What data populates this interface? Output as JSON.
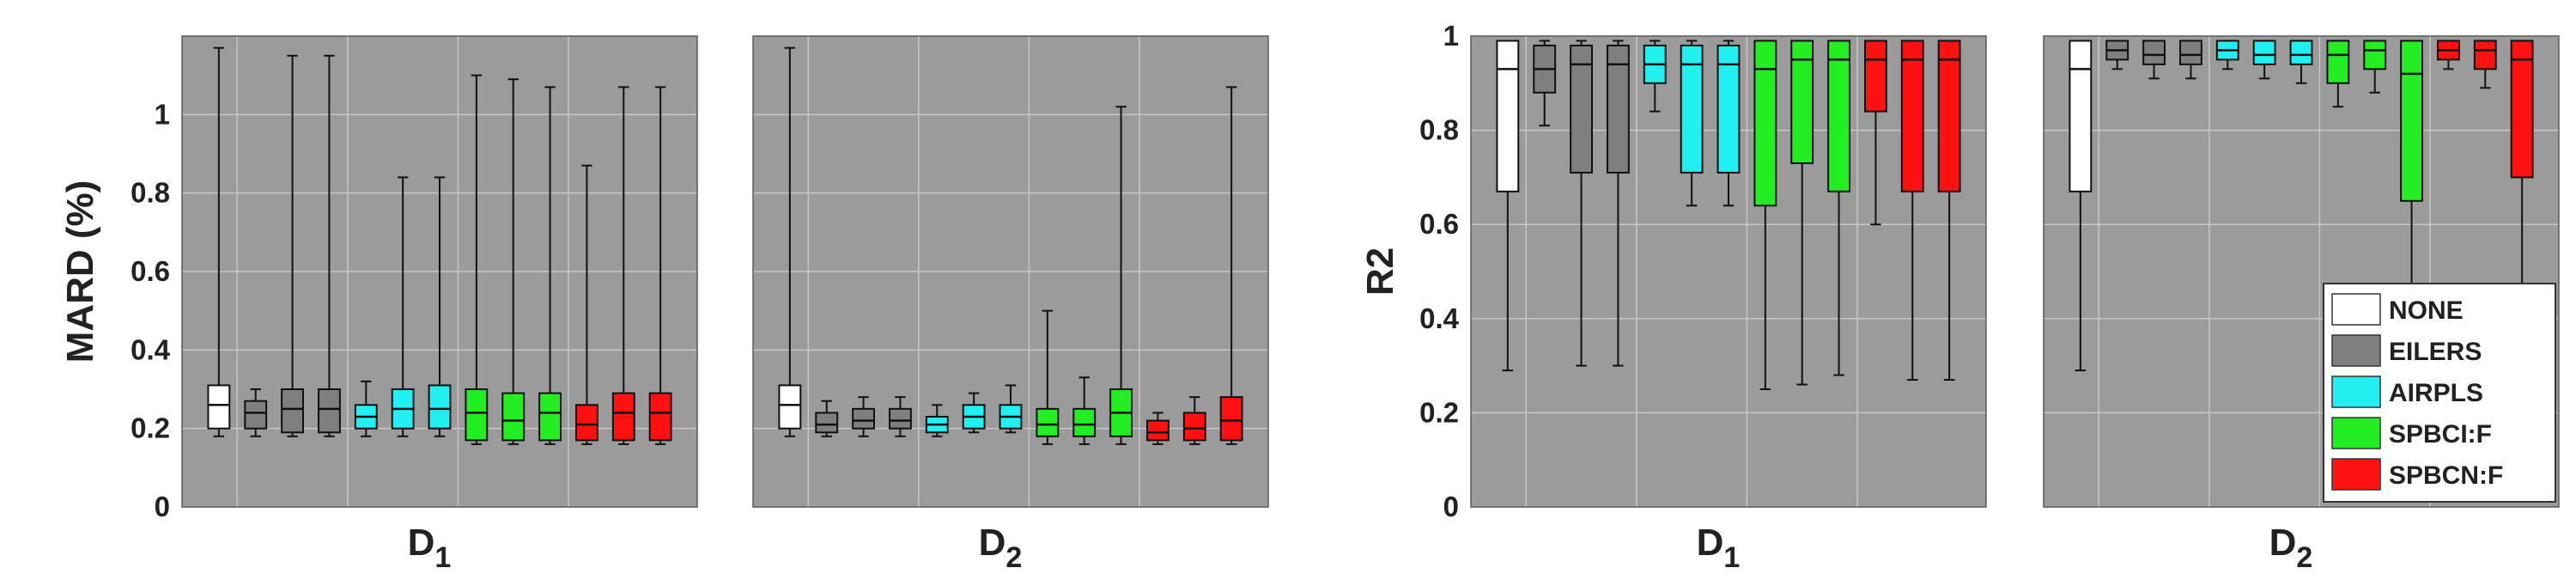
{
  "colors": {
    "plot_bg": "#9b9b9b",
    "grid": "#c7c7c7",
    "whisker": "#111111",
    "NONE": "#ffffff",
    "EILERS": "#7f7f7f",
    "AIRPLS": "#22f0f0",
    "SPBCI:F": "#22ee22",
    "SPBCN:F": "#ff1111"
  },
  "chart_data": [
    {
      "type": "box",
      "ylabel": "MARD (%)",
      "xlabel_main": "D",
      "xlabel_sub": "1",
      "ylim": [
        0,
        1.2
      ],
      "yticks": [
        0,
        0.2,
        0.4,
        0.6,
        0.8,
        1
      ],
      "grid": true,
      "boxes": [
        {
          "method": "NONE",
          "min": 0.18,
          "q1": 0.2,
          "median": 0.26,
          "q3": 0.31,
          "max": 1.17
        },
        {
          "method": "EILERS",
          "min": 0.18,
          "q1": 0.2,
          "median": 0.24,
          "q3": 0.27,
          "max": 0.3
        },
        {
          "method": "EILERS",
          "min": 0.18,
          "q1": 0.19,
          "median": 0.25,
          "q3": 0.3,
          "max": 1.15
        },
        {
          "method": "EILERS",
          "min": 0.18,
          "q1": 0.19,
          "median": 0.25,
          "q3": 0.3,
          "max": 1.15
        },
        {
          "method": "AIRPLS",
          "min": 0.18,
          "q1": 0.2,
          "median": 0.23,
          "q3": 0.26,
          "max": 0.32
        },
        {
          "method": "AIRPLS",
          "min": 0.18,
          "q1": 0.2,
          "median": 0.25,
          "q3": 0.3,
          "max": 0.84
        },
        {
          "method": "AIRPLS",
          "min": 0.18,
          "q1": 0.2,
          "median": 0.25,
          "q3": 0.31,
          "max": 0.84
        },
        {
          "method": "SPBCI:F",
          "min": 0.16,
          "q1": 0.17,
          "median": 0.24,
          "q3": 0.3,
          "max": 1.1
        },
        {
          "method": "SPBCI:F",
          "min": 0.16,
          "q1": 0.17,
          "median": 0.22,
          "q3": 0.29,
          "max": 1.09
        },
        {
          "method": "SPBCI:F",
          "min": 0.16,
          "q1": 0.17,
          "median": 0.24,
          "q3": 0.29,
          "max": 1.07
        },
        {
          "method": "SPBCN:F",
          "min": 0.16,
          "q1": 0.17,
          "median": 0.21,
          "q3": 0.26,
          "max": 0.87
        },
        {
          "method": "SPBCN:F",
          "min": 0.16,
          "q1": 0.17,
          "median": 0.24,
          "q3": 0.29,
          "max": 1.07
        },
        {
          "method": "SPBCN:F",
          "min": 0.16,
          "q1": 0.17,
          "median": 0.24,
          "q3": 0.29,
          "max": 1.07
        }
      ]
    },
    {
      "type": "box",
      "ylabel": "",
      "xlabel_main": "D",
      "xlabel_sub": "2",
      "ylim": [
        0,
        1.2
      ],
      "yticks": [
        0,
        0.2,
        0.4,
        0.6,
        0.8,
        1
      ],
      "grid": true,
      "boxes": [
        {
          "method": "NONE",
          "min": 0.18,
          "q1": 0.2,
          "median": 0.26,
          "q3": 0.31,
          "max": 1.17
        },
        {
          "method": "EILERS",
          "min": 0.18,
          "q1": 0.19,
          "median": 0.21,
          "q3": 0.24,
          "max": 0.27
        },
        {
          "method": "EILERS",
          "min": 0.18,
          "q1": 0.2,
          "median": 0.22,
          "q3": 0.25,
          "max": 0.28
        },
        {
          "method": "EILERS",
          "min": 0.18,
          "q1": 0.2,
          "median": 0.22,
          "q3": 0.25,
          "max": 0.28
        },
        {
          "method": "AIRPLS",
          "min": 0.18,
          "q1": 0.19,
          "median": 0.21,
          "q3": 0.23,
          "max": 0.26
        },
        {
          "method": "AIRPLS",
          "min": 0.19,
          "q1": 0.2,
          "median": 0.23,
          "q3": 0.26,
          "max": 0.29
        },
        {
          "method": "AIRPLS",
          "min": 0.19,
          "q1": 0.2,
          "median": 0.23,
          "q3": 0.26,
          "max": 0.31
        },
        {
          "method": "SPBCI:F",
          "min": 0.16,
          "q1": 0.18,
          "median": 0.21,
          "q3": 0.25,
          "max": 0.5
        },
        {
          "method": "SPBCI:F",
          "min": 0.16,
          "q1": 0.18,
          "median": 0.21,
          "q3": 0.25,
          "max": 0.33
        },
        {
          "method": "SPBCI:F",
          "min": 0.16,
          "q1": 0.18,
          "median": 0.24,
          "q3": 0.3,
          "max": 1.02
        },
        {
          "method": "SPBCN:F",
          "min": 0.16,
          "q1": 0.17,
          "median": 0.19,
          "q3": 0.22,
          "max": 0.24
        },
        {
          "method": "SPBCN:F",
          "min": 0.16,
          "q1": 0.17,
          "median": 0.2,
          "q3": 0.24,
          "max": 0.28
        },
        {
          "method": "SPBCN:F",
          "min": 0.16,
          "q1": 0.17,
          "median": 0.22,
          "q3": 0.28,
          "max": 1.07
        }
      ]
    },
    {
      "type": "box",
      "ylabel": "R2",
      "xlabel_main": "D",
      "xlabel_sub": "1",
      "ylim": [
        0,
        1
      ],
      "yticks": [
        0,
        0.2,
        0.4,
        0.6,
        0.8,
        1
      ],
      "grid": true,
      "boxes": [
        {
          "method": "NONE",
          "min": 0.29,
          "q1": 0.67,
          "median": 0.93,
          "q3": 0.99,
          "max": 0.99
        },
        {
          "method": "EILERS",
          "min": 0.81,
          "q1": 0.88,
          "median": 0.93,
          "q3": 0.98,
          "max": 0.99
        },
        {
          "method": "EILERS",
          "min": 0.3,
          "q1": 0.71,
          "median": 0.94,
          "q3": 0.98,
          "max": 0.99
        },
        {
          "method": "EILERS",
          "min": 0.3,
          "q1": 0.71,
          "median": 0.94,
          "q3": 0.98,
          "max": 0.99
        },
        {
          "method": "AIRPLS",
          "min": 0.84,
          "q1": 0.9,
          "median": 0.94,
          "q3": 0.98,
          "max": 0.99
        },
        {
          "method": "AIRPLS",
          "min": 0.64,
          "q1": 0.71,
          "median": 0.94,
          "q3": 0.98,
          "max": 0.99
        },
        {
          "method": "AIRPLS",
          "min": 0.64,
          "q1": 0.71,
          "median": 0.94,
          "q3": 0.98,
          "max": 0.99
        },
        {
          "method": "SPBCI:F",
          "min": 0.25,
          "q1": 0.64,
          "median": 0.93,
          "q3": 0.99,
          "max": 0.99
        },
        {
          "method": "SPBCI:F",
          "min": 0.26,
          "q1": 0.73,
          "median": 0.95,
          "q3": 0.99,
          "max": 0.99
        },
        {
          "method": "SPBCI:F",
          "min": 0.28,
          "q1": 0.67,
          "median": 0.95,
          "q3": 0.99,
          "max": 0.99
        },
        {
          "method": "SPBCN:F",
          "min": 0.6,
          "q1": 0.84,
          "median": 0.95,
          "q3": 0.99,
          "max": 0.99
        },
        {
          "method": "SPBCN:F",
          "min": 0.27,
          "q1": 0.67,
          "median": 0.95,
          "q3": 0.99,
          "max": 0.99
        },
        {
          "method": "SPBCN:F",
          "min": 0.27,
          "q1": 0.67,
          "median": 0.95,
          "q3": 0.99,
          "max": 0.99
        }
      ]
    },
    {
      "type": "box",
      "ylabel": "",
      "xlabel_main": "D",
      "xlabel_sub": "2",
      "ylim": [
        0,
        1
      ],
      "yticks": [
        0,
        0.2,
        0.4,
        0.6,
        0.8,
        1
      ],
      "grid": true,
      "boxes": [
        {
          "method": "NONE",
          "min": 0.29,
          "q1": 0.67,
          "median": 0.93,
          "q3": 0.99,
          "max": 0.99
        },
        {
          "method": "EILERS",
          "min": 0.93,
          "q1": 0.95,
          "median": 0.97,
          "q3": 0.99,
          "max": 0.99
        },
        {
          "method": "EILERS",
          "min": 0.91,
          "q1": 0.94,
          "median": 0.96,
          "q3": 0.99,
          "max": 0.99
        },
        {
          "method": "EILERS",
          "min": 0.91,
          "q1": 0.94,
          "median": 0.96,
          "q3": 0.99,
          "max": 0.99
        },
        {
          "method": "AIRPLS",
          "min": 0.93,
          "q1": 0.95,
          "median": 0.97,
          "q3": 0.99,
          "max": 0.99
        },
        {
          "method": "AIRPLS",
          "min": 0.91,
          "q1": 0.94,
          "median": 0.96,
          "q3": 0.99,
          "max": 0.99
        },
        {
          "method": "AIRPLS",
          "min": 0.9,
          "q1": 0.94,
          "median": 0.96,
          "q3": 0.99,
          "max": 0.99
        },
        {
          "method": "SPBCI:F",
          "min": 0.85,
          "q1": 0.9,
          "median": 0.96,
          "q3": 0.99,
          "max": 0.99
        },
        {
          "method": "SPBCI:F",
          "min": 0.88,
          "q1": 0.93,
          "median": 0.97,
          "q3": 0.99,
          "max": 0.99
        },
        {
          "method": "SPBCI:F",
          "min": 0.3,
          "q1": 0.65,
          "median": 0.92,
          "q3": 0.99,
          "max": 0.99
        },
        {
          "method": "SPBCN:F",
          "min": 0.93,
          "q1": 0.95,
          "median": 0.97,
          "q3": 0.99,
          "max": 0.99
        },
        {
          "method": "SPBCN:F",
          "min": 0.89,
          "q1": 0.93,
          "median": 0.97,
          "q3": 0.99,
          "max": 0.99
        },
        {
          "method": "SPBCN:F",
          "min": 0.3,
          "q1": 0.7,
          "median": 0.95,
          "q3": 0.99,
          "max": 0.99
        }
      ]
    }
  ],
  "legend": {
    "placement": "bottom-right",
    "items": [
      {
        "label": "NONE",
        "color": "#ffffff"
      },
      {
        "label": "EILERS",
        "color": "#7f7f7f"
      },
      {
        "label": "AIRPLS",
        "color": "#22f0f0"
      },
      {
        "label": "SPBCI:F",
        "color": "#22ee22"
      },
      {
        "label": "SPBCN:F",
        "color": "#ff1111"
      }
    ]
  }
}
